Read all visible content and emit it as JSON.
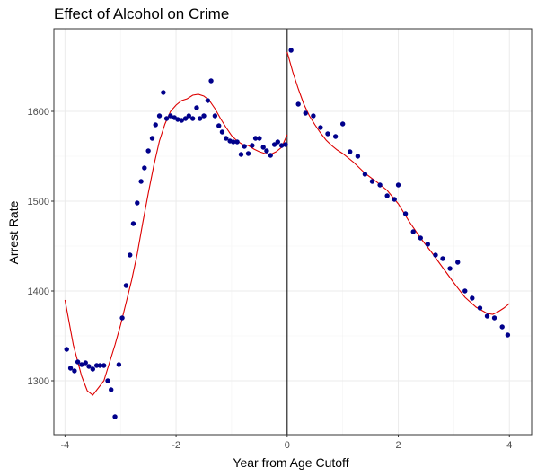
{
  "chart_data": {
    "type": "scatter",
    "title": "Effect of Alcohol on Crime",
    "xlabel": "Year from Age Cutoff",
    "ylabel": "Arrest Rate",
    "xlim": [
      -4.2,
      4.4
    ],
    "ylim": [
      1240,
      1692
    ],
    "x_ticks": [
      -4,
      -2,
      0,
      2,
      4
    ],
    "x_tick_labels": [
      "-4",
      "-2",
      "0",
      "2",
      "4"
    ],
    "y_ticks": [
      1300,
      1400,
      1500,
      1600
    ],
    "y_tick_labels": [
      "1300",
      "1400",
      "1500",
      "1600"
    ],
    "grid": true,
    "cutoff_x": 0,
    "colors": {
      "points": "#00008b",
      "fit": "#dd0000",
      "cutoff": "#000000",
      "grid": "#ebebeb",
      "border": "#333333"
    },
    "series": [
      {
        "type": "scatter",
        "x": [
          -3.97,
          -3.9,
          -3.83,
          -3.77,
          -3.7,
          -3.63,
          -3.57,
          -3.5,
          -3.43,
          -3.37,
          -3.3,
          -3.23,
          -3.17,
          -3.1,
          -3.03,
          -2.97,
          -2.9,
          -2.83,
          -2.77,
          -2.7,
          -2.63,
          -2.57,
          -2.5,
          -2.43,
          -2.37,
          -2.3,
          -2.23,
          -2.17,
          -2.1,
          -2.03,
          -1.97,
          -1.9,
          -1.83,
          -1.77,
          -1.7,
          -1.63,
          -1.57,
          -1.5,
          -1.43,
          -1.37,
          -1.3,
          -1.23,
          -1.17,
          -1.1,
          -1.03,
          -0.97,
          -0.9,
          -0.83,
          -0.77,
          -0.7,
          -0.63,
          -0.57,
          -0.5,
          -0.43,
          -0.37,
          -0.3,
          -0.23,
          -0.17,
          -0.1,
          -0.03,
          0.07,
          0.2,
          0.33,
          0.47,
          0.6,
          0.73,
          0.87,
          1.0,
          1.13,
          1.27,
          1.4,
          1.53,
          1.67,
          1.8,
          1.93,
          2.0,
          2.13,
          2.27,
          2.4,
          2.53,
          2.67,
          2.8,
          2.93,
          3.07,
          3.2,
          3.33,
          3.47,
          3.6,
          3.73,
          3.87,
          3.97
        ],
        "y": [
          1335,
          1314,
          1311,
          1321,
          1318,
          1320,
          1316,
          1313,
          1317,
          1317,
          1317,
          1300,
          1290,
          1260,
          1318,
          1370,
          1406,
          1440,
          1475,
          1498,
          1522,
          1537,
          1556,
          1570,
          1585,
          1595,
          1621,
          1592,
          1595,
          1593,
          1591,
          1590,
          1592,
          1595,
          1592,
          1604,
          1592,
          1595,
          1612,
          1634,
          1595,
          1584,
          1577,
          1570,
          1567,
          1566,
          1566,
          1552,
          1561,
          1553,
          1562,
          1570,
          1570,
          1560,
          1556,
          1551,
          1563,
          1566,
          1562,
          1563,
          1668,
          1608,
          1598,
          1595,
          1582,
          1575,
          1572,
          1586,
          1555,
          1550,
          1530,
          1522,
          1518,
          1506,
          1502,
          1518,
          1486,
          1466,
          1459,
          1452,
          1440,
          1436,
          1425,
          1432,
          1400,
          1392,
          1381,
          1372,
          1370,
          1360,
          1351
        ]
      },
      {
        "type": "line",
        "segments": [
          {
            "x": [
              -4.0,
              -3.85,
              -3.7,
              -3.6,
              -3.5,
              -3.4,
              -3.3,
              -3.2,
              -3.1,
              -3.0,
              -2.9,
              -2.8,
              -2.7,
              -2.6,
              -2.5,
              -2.4,
              -2.3,
              -2.2,
              -2.1,
              -2.0,
              -1.9,
              -1.8,
              -1.7,
              -1.6,
              -1.5,
              -1.4,
              -1.3,
              -1.2,
              -1.1,
              -1.0,
              -0.9,
              -0.8,
              -0.7,
              -0.6,
              -0.5,
              -0.4,
              -0.3,
              -0.2,
              -0.1,
              0.0
            ],
            "y": [
              1390,
              1340,
              1305,
              1289,
              1284,
              1292,
              1300,
              1320,
              1340,
              1362,
              1387,
              1412,
              1441,
              1476,
              1509,
              1540,
              1567,
              1586,
              1600,
              1607,
              1612,
              1614,
              1618,
              1619,
              1617,
              1612,
              1603,
              1592,
              1582,
              1573,
              1567,
              1563,
              1562,
              1558,
              1555,
              1553,
              1552,
              1555,
              1560,
              1574
            ]
          },
          {
            "x": [
              0.0,
              0.1,
              0.2,
              0.3,
              0.4,
              0.5,
              0.6,
              0.7,
              0.8,
              0.9,
              1.0,
              1.2,
              1.4,
              1.6,
              1.8,
              2.0,
              2.2,
              2.4,
              2.6,
              2.8,
              3.0,
              3.2,
              3.4,
              3.6,
              3.7,
              3.8,
              3.9,
              4.0
            ],
            "y": [
              1666,
              1644,
              1625,
              1608,
              1595,
              1585,
              1576,
              1568,
              1562,
              1557,
              1553,
              1543,
              1531,
              1522,
              1512,
              1497,
              1477,
              1459,
              1443,
              1426,
              1409,
              1393,
              1382,
              1375,
              1374,
              1377,
              1381,
              1386
            ]
          }
        ]
      }
    ]
  }
}
